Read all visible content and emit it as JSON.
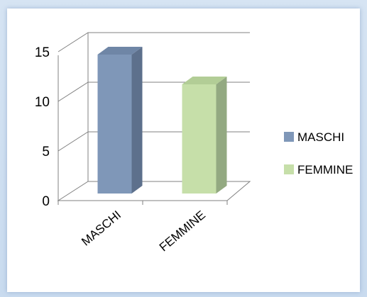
{
  "chart_data": {
    "type": "bar",
    "categories": [
      "MASCHI",
      "FEMMINE"
    ],
    "series": [
      {
        "name": "MASCHI",
        "values": [
          14,
          null
        ],
        "color": "#7f97b8",
        "side": "#5d708c",
        "top": "#6f86a6"
      },
      {
        "name": "FEMMINE",
        "values": [
          null,
          11
        ],
        "color": "#c6dfa9",
        "side": "#93a981",
        "top": "#b2cd96"
      }
    ],
    "yticks": [
      0,
      5,
      10,
      15
    ],
    "ylim": [
      0,
      15
    ],
    "legend_position": "right",
    "grid": true,
    "style": "3d-column"
  }
}
